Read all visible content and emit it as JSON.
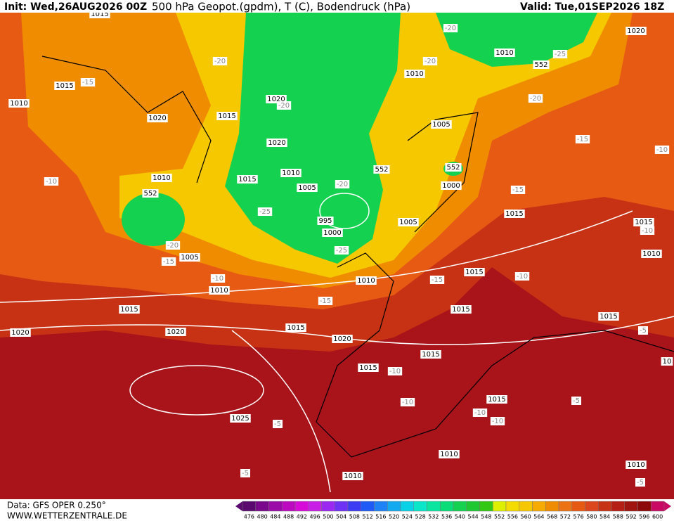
{
  "header": {
    "init": "Init: Wed,26AUG2026 00Z",
    "title": "500 hPa Geopot.(gpdm), T (C), Bodendruck (hPa)",
    "valid": "Valid: Tue,01SEP2026 18Z"
  },
  "map": {
    "labels": [
      "1015",
      "1020",
      "1010",
      "552",
      "-25",
      "-20",
      "1010",
      "-20",
      "1015",
      "-15",
      "1010",
      "-20",
      "1020",
      "-20",
      "1015",
      "1020",
      "1020",
      "-20",
      "1005",
      "-15",
      "-10",
      "1010",
      "1010",
      "552",
      "552",
      "-10",
      "1015",
      "1005",
      "-20",
      "1000",
      "-15",
      "552",
      "-25",
      "1015",
      "995",
      "1005",
      "1015",
      "-10",
      "1000",
      "-20",
      "-25",
      "1005",
      "-15",
      "1010",
      "1015",
      "-10",
      "-10",
      "1010",
      "-15",
      "1010",
      "-15",
      "1015",
      "1015",
      "1015",
      "1015",
      "-5",
      "1020",
      "1020",
      "1020",
      "1015",
      "10",
      "1015",
      "-10",
      "-10",
      "1015",
      "-5",
      "-10",
      "-10",
      "1025",
      "-5",
      "1010",
      "1010",
      "-5",
      "1010",
      "-5"
    ]
  },
  "colorbar": {
    "labels": [
      476,
      480,
      484,
      488,
      492,
      496,
      500,
      504,
      508,
      512,
      516,
      520,
      524,
      528,
      532,
      536,
      540,
      544,
      548,
      552,
      556,
      560,
      564,
      568,
      572,
      576,
      580,
      584,
      588,
      592,
      596,
      600
    ],
    "colors": [
      "#5a0a6e",
      "#7a0a8c",
      "#9a0aa8",
      "#bb0abf",
      "#d80ad8",
      "#c81ee6",
      "#9a28f0",
      "#6e32f5",
      "#3c3cf5",
      "#1e5af5",
      "#1e82f5",
      "#14aaf0",
      "#0ad2e6",
      "#0ae6c8",
      "#0ae6a0",
      "#0adc78",
      "#14d250",
      "#1ec832",
      "#32c814",
      "#dcf000",
      "#f5dc00",
      "#f5c800",
      "#f5aa00",
      "#f08c00",
      "#eb7314",
      "#e65a14",
      "#dc461e",
      "#c83214",
      "#b41e14",
      "#a0140f",
      "#8c0a0a",
      "#c80a64"
    ]
  },
  "footer": {
    "source": "Data: GFS OPER 0.250°",
    "website": "WWW.WETTERZENTRALE.DE"
  }
}
